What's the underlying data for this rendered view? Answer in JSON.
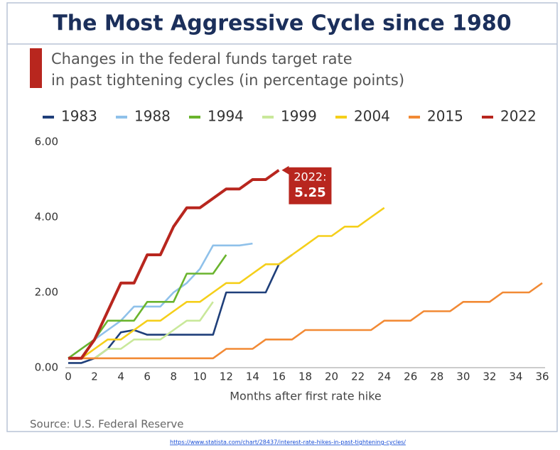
{
  "chart_data": {
    "type": "line",
    "title": "The Most Aggressive Cycle since 1980",
    "subtitle": [
      "Changes in the federal funds target rate",
      "in past tightening cycles (in percentage points)"
    ],
    "x_label": "Months after first rate hike",
    "source": "Source: U.S. Federal Reserve",
    "url": "https://www.statista.com/chart/28437/interest-rate-hikes-in-past-tightening-cycles/",
    "xlim": [
      0,
      36
    ],
    "xticks": [
      0,
      2,
      4,
      6,
      8,
      10,
      12,
      14,
      16,
      18,
      20,
      22,
      24,
      26,
      28,
      30,
      32,
      34,
      36
    ],
    "ylim": [
      0,
      6
    ],
    "yticks": [
      {
        "value": 0,
        "label": "0.00"
      },
      {
        "value": 2,
        "label": "2.00"
      },
      {
        "value": 4,
        "label": "4.00"
      },
      {
        "value": 6,
        "label": "6.00"
      }
    ],
    "grid": false,
    "legend": "top",
    "annotation": {
      "label": "2022:",
      "value": 5.25,
      "color": "#b8261e"
    },
    "series": [
      {
        "name": "1983",
        "color": "#1f3f7a",
        "x": [
          0,
          1,
          2,
          3,
          4,
          5,
          6,
          7,
          8,
          9,
          10,
          11,
          12,
          13,
          14,
          15,
          16,
          17
        ],
        "values": [
          0.125,
          0.125,
          0.25,
          0.5,
          0.94,
          1.0,
          0.875,
          0.875,
          0.875,
          0.875,
          0.875,
          0.875,
          2.0,
          2.0,
          2.0,
          2.0,
          2.75,
          3.0
        ]
      },
      {
        "name": "1988",
        "color": "#8fc1ea",
        "x": [
          0,
          1,
          2,
          3,
          4,
          5,
          6,
          7,
          8,
          9,
          10,
          11,
          12,
          13,
          14
        ],
        "values": [
          0.25,
          0.5,
          0.75,
          1.0,
          1.25,
          1.625,
          1.625,
          1.625,
          2.0,
          2.25,
          2.625,
          3.25,
          3.25,
          3.25,
          3.3
        ]
      },
      {
        "name": "1994",
        "color": "#6ab42d",
        "x": [
          0,
          1,
          2,
          3,
          4,
          5,
          6,
          7,
          8,
          9,
          10,
          11,
          12
        ],
        "values": [
          0.25,
          0.5,
          0.75,
          1.25,
          1.25,
          1.25,
          1.75,
          1.75,
          1.75,
          2.5,
          2.5,
          2.5,
          3.0
        ]
      },
      {
        "name": "1999",
        "color": "#c9e89a",
        "x": [
          0,
          1,
          2,
          3,
          4,
          5,
          6,
          7,
          8,
          9,
          10,
          11
        ],
        "values": [
          0.25,
          0.25,
          0.25,
          0.5,
          0.5,
          0.75,
          0.75,
          0.75,
          1.0,
          1.25,
          1.25,
          1.75
        ]
      },
      {
        "name": "2004",
        "color": "#f5cf1a",
        "x": [
          0,
          1,
          2,
          3,
          4,
          5,
          6,
          7,
          8,
          9,
          10,
          11,
          12,
          13,
          14,
          15,
          16,
          17,
          18,
          19,
          20,
          21,
          22,
          23,
          24
        ],
        "values": [
          0.25,
          0.25,
          0.5,
          0.75,
          0.75,
          1.0,
          1.25,
          1.25,
          1.5,
          1.75,
          1.75,
          2.0,
          2.25,
          2.25,
          2.5,
          2.75,
          2.75,
          3.0,
          3.25,
          3.5,
          3.5,
          3.75,
          3.75,
          4.0,
          4.25
        ]
      },
      {
        "name": "2015",
        "color": "#f28a35",
        "x": [
          0,
          1,
          2,
          3,
          4,
          5,
          6,
          7,
          8,
          9,
          10,
          11,
          12,
          13,
          14,
          15,
          16,
          17,
          18,
          19,
          20,
          21,
          22,
          23,
          24,
          25,
          26,
          27,
          28,
          29,
          30,
          31,
          32,
          33,
          34,
          35,
          36
        ],
        "values": [
          0.25,
          0.25,
          0.25,
          0.25,
          0.25,
          0.25,
          0.25,
          0.25,
          0.25,
          0.25,
          0.25,
          0.25,
          0.5,
          0.5,
          0.5,
          0.75,
          0.75,
          0.75,
          1.0,
          1.0,
          1.0,
          1.0,
          1.0,
          1.0,
          1.25,
          1.25,
          1.25,
          1.5,
          1.5,
          1.5,
          1.75,
          1.75,
          1.75,
          2.0,
          2.0,
          2.0,
          2.25
        ]
      },
      {
        "name": "2022",
        "color": "#b8261e",
        "x": [
          0,
          1,
          2,
          3,
          4,
          5,
          6,
          7,
          8,
          9,
          10,
          11,
          12,
          13,
          14,
          15,
          16
        ],
        "values": [
          0.25,
          0.25,
          0.75,
          1.5,
          2.25,
          2.25,
          3.0,
          3.0,
          3.75,
          4.25,
          4.25,
          4.5,
          4.75,
          4.75,
          5.0,
          5.0,
          5.25
        ]
      }
    ]
  }
}
